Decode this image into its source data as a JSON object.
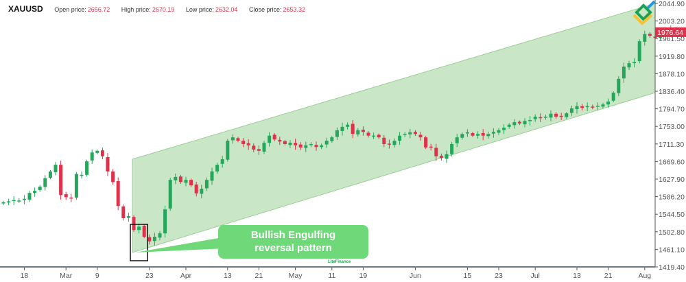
{
  "header": {
    "symbol": "XAUUSD",
    "open_label": "Open price:",
    "open_value": "2656.72",
    "high_label": "High price:",
    "high_value": "2670.19",
    "low_label": "Low price:",
    "low_value": "2632.04",
    "close_label": "Close price:",
    "close_value": "2653.32"
  },
  "annotation": {
    "line1": "Bullish Engulfing",
    "line2": "reversal pattern"
  },
  "watermark": "LiteFinance",
  "colors": {
    "up": "#26a65b",
    "down": "#e0314b",
    "channel": "#c9e6c6",
    "channel_edge": "#9ccc98",
    "callout": "#6fd97a",
    "price_tag": "#e0314b"
  },
  "chart_data": {
    "type": "candlestick",
    "title": "",
    "ylim": [
      1419.4,
      2044.9
    ],
    "y_ticks": [
      "2044.90",
      "2003.20",
      "1961.50",
      "1919.80",
      "1878.10",
      "1836.40",
      "1794.70",
      "1753.00",
      "1711.30",
      "1669.60",
      "1627.90",
      "1586.20",
      "1544.50",
      "1502.80",
      "1461.10",
      "1419.40"
    ],
    "x_ticks": [
      {
        "label": "18",
        "index": 4
      },
      {
        "label": "Mar",
        "index": 12
      },
      {
        "label": "9",
        "index": 18
      },
      {
        "label": "23",
        "index": 28
      },
      {
        "label": "Apr",
        "index": 35
      },
      {
        "label": "13",
        "index": 43
      },
      {
        "label": "21",
        "index": 49
      },
      {
        "label": "May",
        "index": 56
      },
      {
        "label": "11",
        "index": 63
      },
      {
        "label": "19",
        "index": 69
      },
      {
        "label": "Jun",
        "index": 79
      },
      {
        "label": "15",
        "index": 89
      },
      {
        "label": "23",
        "index": 95
      },
      {
        "label": "Jul",
        "index": 102
      },
      {
        "label": "13",
        "index": 110
      },
      {
        "label": "21",
        "index": 116
      },
      {
        "label": "Aug",
        "index": 123
      }
    ],
    "last_price": "1976.64",
    "closes": [
      1573,
      1575,
      1578,
      1577,
      1581,
      1595,
      1600,
      1610,
      1630,
      1646,
      1662,
      1590,
      1585,
      1583,
      1640,
      1638,
      1670,
      1691,
      1695,
      1682,
      1646,
      1621,
      1564,
      1535,
      1540,
      1507,
      1515,
      1491,
      1480,
      1491,
      1499,
      1556,
      1626,
      1633,
      1621,
      1626,
      1613,
      1594,
      1605,
      1626,
      1646,
      1662,
      1675,
      1719,
      1727,
      1719,
      1711,
      1708,
      1698,
      1695,
      1714,
      1731,
      1722,
      1717,
      1711,
      1714,
      1708,
      1703,
      1708,
      1711,
      1704,
      1708,
      1719,
      1727,
      1744,
      1752,
      1757,
      1735,
      1744,
      1740,
      1731,
      1731,
      1727,
      1711,
      1711,
      1719,
      1731,
      1735,
      1739,
      1735,
      1727,
      1703,
      1703,
      1682,
      1678,
      1687,
      1711,
      1727,
      1735,
      1739,
      1731,
      1735,
      1731,
      1735,
      1740,
      1744,
      1750,
      1757,
      1763,
      1760,
      1766,
      1768,
      1776,
      1773,
      1776,
      1783,
      1776,
      1776,
      1784,
      1796,
      1801,
      1797,
      1801,
      1799,
      1802,
      1805,
      1812,
      1833,
      1866,
      1895,
      1903,
      1906,
      1955,
      1972,
      1968,
      1963,
      1980,
      1980,
      1983,
      1978
    ],
    "channel": {
      "start_index": 25,
      "end_index": 125,
      "upper": [
        1675.1,
        2044.9
      ],
      "lower": [
        1453.6,
        1833.1
      ]
    },
    "pattern_box": {
      "start_index": 25,
      "end_index": 27
    }
  }
}
